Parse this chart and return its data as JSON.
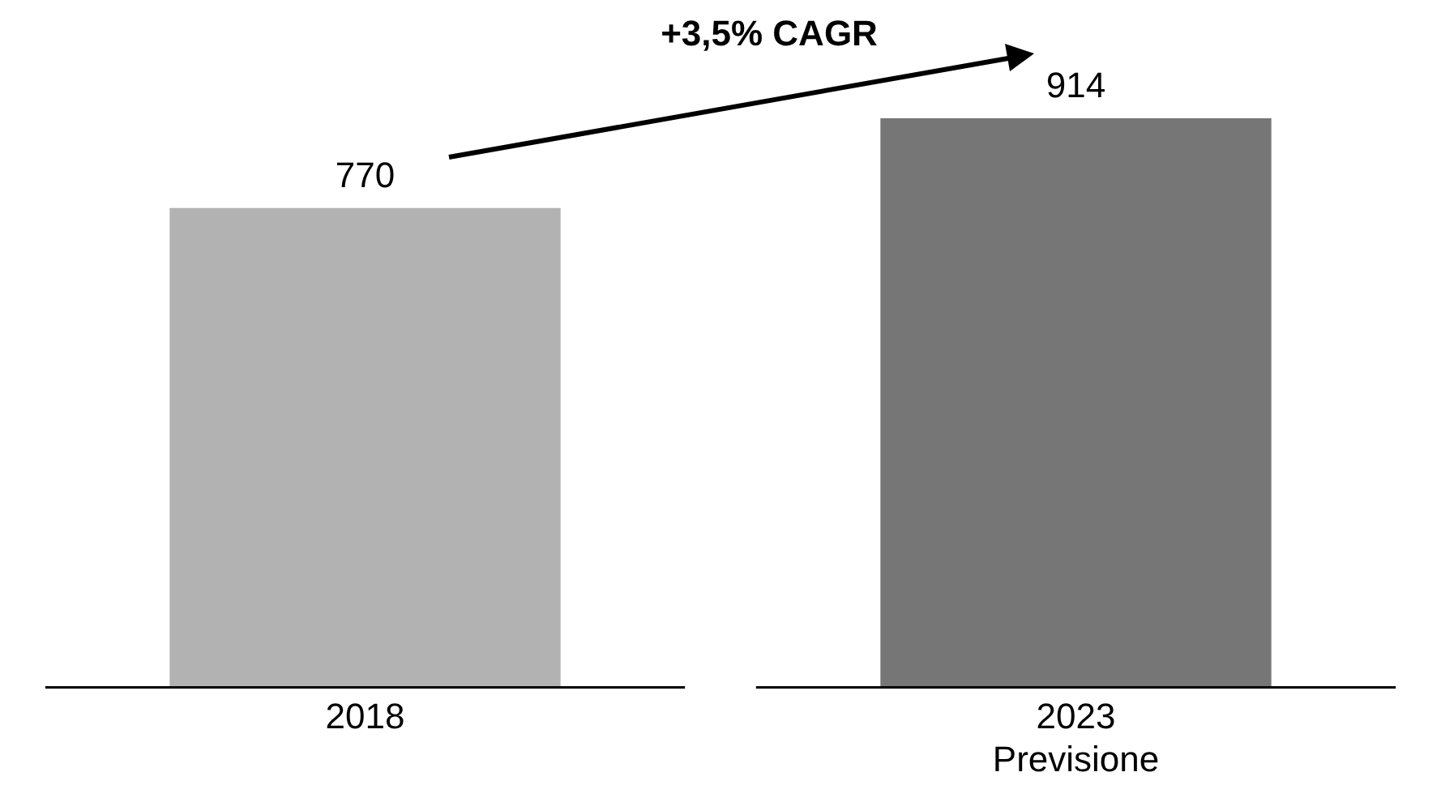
{
  "chart_data": {
    "type": "bar",
    "categories": [
      "2018",
      "2023\nPrevisione"
    ],
    "values": [
      770,
      914
    ],
    "colors": [
      "#b2b2b2",
      "#767676"
    ],
    "data_labels": true,
    "annotations": [
      "+3,5% CAGR"
    ],
    "grid": false,
    "legend": false,
    "tick_labels": "x"
  }
}
